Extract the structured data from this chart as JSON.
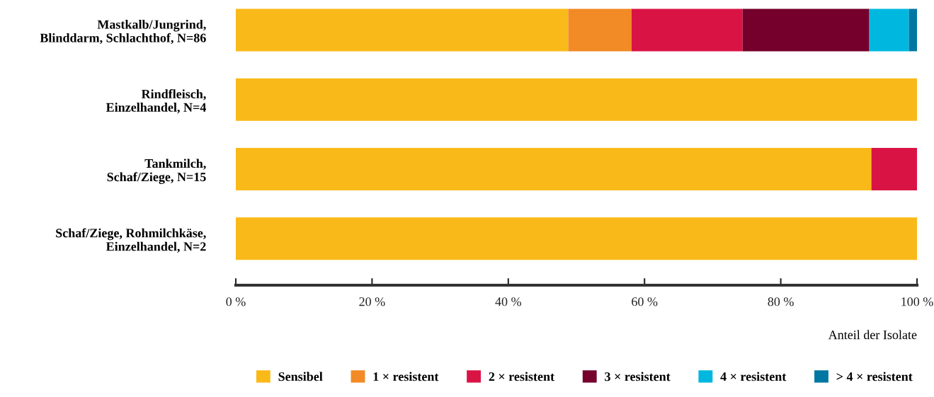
{
  "chart_data": {
    "type": "bar",
    "orientation": "horizontal",
    "stacked": true,
    "xlabel": "Anteil der Isolate",
    "categories": [
      "Mastkalb/Jungrind,\nBlinddarm, Schlachthof, N=86",
      "Rindfleisch,\nEinzelhandel, N=4",
      "Tankmilch,\nSchaf/Ziege, N=15",
      "Schaf/Ziege, Rohmilchkäse,\nEinzelhandel, N=2"
    ],
    "series": [
      {
        "name": "Sensibel",
        "color": "#f9b918",
        "values": [
          48.8,
          100,
          93.3,
          100
        ]
      },
      {
        "name": "1 × resistent",
        "color": "#f28a25",
        "values": [
          9.3,
          0,
          0,
          0
        ]
      },
      {
        "name": "2 × resistent",
        "color": "#d91445",
        "values": [
          16.3,
          0,
          6.7,
          0
        ]
      },
      {
        "name": "3 × resistent",
        "color": "#75002b",
        "values": [
          18.6,
          0,
          0,
          0
        ]
      },
      {
        "name": "4 × resistent",
        "color": "#00b8df",
        "values": [
          5.8,
          0,
          0,
          0
        ]
      },
      {
        "name": "> 4 × resistent",
        "color": "#0077a3",
        "values": [
          1.2,
          0,
          0,
          0
        ]
      }
    ],
    "xlim": [
      0,
      100
    ],
    "xticks": [
      {
        "value": 0,
        "label": "0 %"
      },
      {
        "value": 20,
        "label": "20 %"
      },
      {
        "value": 40,
        "label": "40 %"
      },
      {
        "value": 60,
        "label": "60 %"
      },
      {
        "value": 80,
        "label": "80 %"
      },
      {
        "value": 100,
        "label": "100 %"
      }
    ],
    "grid": false,
    "legend": "bottom"
  }
}
